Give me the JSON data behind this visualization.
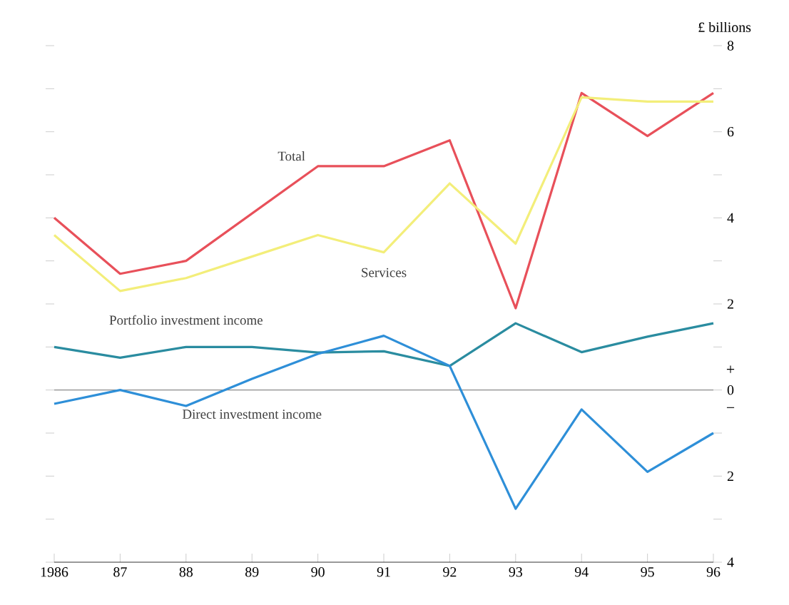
{
  "chart_data": {
    "type": "line",
    "ylabel": "£ billions",
    "categories": [
      "1986",
      "87",
      "88",
      "89",
      "90",
      "91",
      "92",
      "93",
      "94",
      "95",
      "96"
    ],
    "ylim": [
      -4,
      8
    ],
    "yticks": [
      {
        "value": -4,
        "label": "4"
      },
      {
        "value": -3,
        "label": null
      },
      {
        "value": -2,
        "label": "2"
      },
      {
        "value": -1,
        "label": null
      },
      0,
      {
        "value": 1,
        "label": null
      },
      2,
      {
        "value": 3,
        "label": null
      },
      4,
      {
        "value": 5,
        "label": null
      },
      6,
      {
        "value": 7,
        "label": null
      },
      8
    ],
    "series": [
      {
        "name": "Total",
        "color": "#e8505a",
        "values": [
          4.0,
          2.7,
          3.0,
          4.1,
          5.2,
          5.2,
          5.8,
          1.9,
          6.9,
          5.9,
          6.9
        ]
      },
      {
        "name": "Services",
        "color": "#f3ee7a",
        "values": [
          3.6,
          2.3,
          2.6,
          3.1,
          3.6,
          3.2,
          4.8,
          3.4,
          6.8,
          6.7,
          6.7
        ]
      },
      {
        "name": "Portfolio investment income",
        "color": "#2a8ca0",
        "values": [
          1.0,
          0.75,
          1.0,
          1.0,
          0.87,
          0.9,
          0.56,
          1.55,
          0.88,
          1.24,
          1.55
        ]
      },
      {
        "name": "Direct investment income",
        "color": "#2e8fd8",
        "values": [
          -0.32,
          0.0,
          -0.37,
          0.26,
          0.84,
          1.26,
          0.56,
          -2.76,
          -0.45,
          -1.9,
          -1.0
        ]
      }
    ],
    "ref_lines": [
      {
        "axis": "y",
        "value": 0,
        "color": "#8a8a8a"
      }
    ],
    "annotations": [
      "+",
      "−"
    ],
    "line_style": "solid"
  }
}
